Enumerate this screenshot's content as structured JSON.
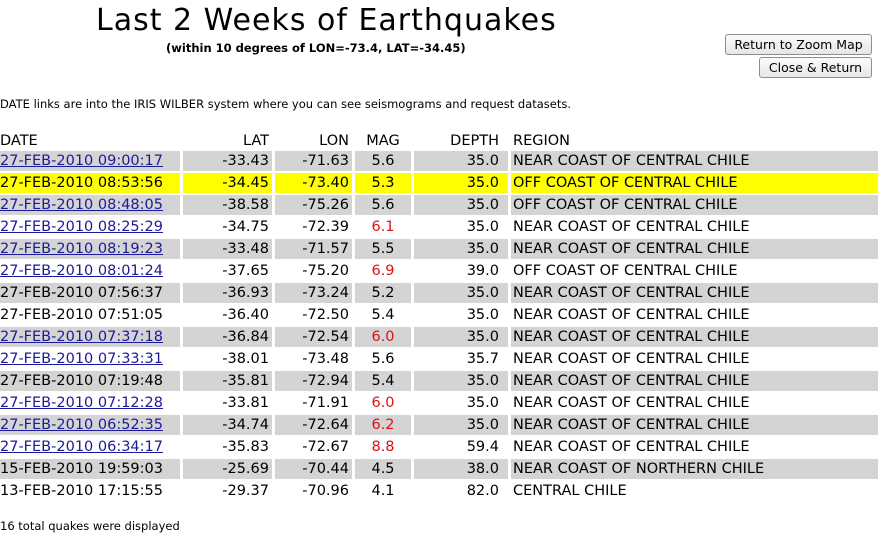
{
  "page": {
    "title": "Last 2 Weeks of Earthquakes",
    "subtitle": "(within 10 degrees of LON=-73.4, LAT=-34.45)",
    "note": "DATE links are into the IRIS WILBER system where you can see seismograms and request datasets.",
    "footer": "16 total quakes were displayed"
  },
  "buttons": {
    "zoom_map": "Return to Zoom Map",
    "close_return": "Close & Return"
  },
  "table": {
    "headers": [
      "DATE",
      "LAT",
      "LON",
      "MAG",
      "DEPTH",
      "REGION"
    ],
    "rows": [
      {
        "date": "27-FEB-2010 09:00:17",
        "lat": "-33.43",
        "lon": "-71.63",
        "mag": "5.6",
        "depth": "35.0",
        "region": "NEAR COAST OF CENTRAL CHILE",
        "link": true,
        "style": "shade",
        "big": false
      },
      {
        "date": "27-FEB-2010 08:53:56",
        "lat": "-34.45",
        "lon": "-73.40",
        "mag": "5.3",
        "depth": "35.0",
        "region": "OFF COAST OF CENTRAL CHILE",
        "link": false,
        "style": "hl",
        "big": false
      },
      {
        "date": "27-FEB-2010 08:48:05",
        "lat": "-38.58",
        "lon": "-75.26",
        "mag": "5.6",
        "depth": "35.0",
        "region": "OFF COAST OF CENTRAL CHILE",
        "link": true,
        "style": "shade",
        "big": false
      },
      {
        "date": "27-FEB-2010 08:25:29",
        "lat": "-34.75",
        "lon": "-72.39",
        "mag": "6.1",
        "depth": "35.0",
        "region": "NEAR COAST OF CENTRAL CHILE",
        "link": true,
        "style": "plain",
        "big": true
      },
      {
        "date": "27-FEB-2010 08:19:23",
        "lat": "-33.48",
        "lon": "-71.57",
        "mag": "5.5",
        "depth": "35.0",
        "region": "NEAR COAST OF CENTRAL CHILE",
        "link": true,
        "style": "shade",
        "big": false
      },
      {
        "date": "27-FEB-2010 08:01:24",
        "lat": "-37.65",
        "lon": "-75.20",
        "mag": "6.9",
        "depth": "39.0",
        "region": "OFF COAST OF CENTRAL CHILE",
        "link": true,
        "style": "plain",
        "big": true
      },
      {
        "date": "27-FEB-2010 07:56:37",
        "lat": "-36.93",
        "lon": "-73.24",
        "mag": "5.2",
        "depth": "35.0",
        "region": "NEAR COAST OF CENTRAL CHILE",
        "link": false,
        "style": "shade",
        "big": false
      },
      {
        "date": "27-FEB-2010 07:51:05",
        "lat": "-36.40",
        "lon": "-72.50",
        "mag": "5.4",
        "depth": "35.0",
        "region": "NEAR COAST OF CENTRAL CHILE",
        "link": false,
        "style": "plain",
        "big": false
      },
      {
        "date": "27-FEB-2010 07:37:18",
        "lat": "-36.84",
        "lon": "-72.54",
        "mag": "6.0",
        "depth": "35.0",
        "region": "NEAR COAST OF CENTRAL CHILE",
        "link": true,
        "style": "shade",
        "big": true
      },
      {
        "date": "27-FEB-2010 07:33:31",
        "lat": "-38.01",
        "lon": "-73.48",
        "mag": "5.6",
        "depth": "35.7",
        "region": "NEAR COAST OF CENTRAL CHILE",
        "link": true,
        "style": "plain",
        "big": false
      },
      {
        "date": "27-FEB-2010 07:19:48",
        "lat": "-35.81",
        "lon": "-72.94",
        "mag": "5.4",
        "depth": "35.0",
        "region": "NEAR COAST OF CENTRAL CHILE",
        "link": false,
        "style": "shade",
        "big": false
      },
      {
        "date": "27-FEB-2010 07:12:28",
        "lat": "-33.81",
        "lon": "-71.91",
        "mag": "6.0",
        "depth": "35.0",
        "region": "NEAR COAST OF CENTRAL CHILE",
        "link": true,
        "style": "plain",
        "big": true
      },
      {
        "date": "27-FEB-2010 06:52:35",
        "lat": "-34.74",
        "lon": "-72.64",
        "mag": "6.2",
        "depth": "35.0",
        "region": "NEAR COAST OF CENTRAL CHILE",
        "link": true,
        "style": "shade",
        "big": true
      },
      {
        "date": "27-FEB-2010 06:34:17",
        "lat": "-35.83",
        "lon": "-72.67",
        "mag": "8.8",
        "depth": "59.4",
        "region": "NEAR COAST OF CENTRAL CHILE",
        "link": true,
        "style": "plain",
        "big": true
      },
      {
        "date": "15-FEB-2010 19:59:03",
        "lat": "-25.69",
        "lon": "-70.44",
        "mag": "4.5",
        "depth": "38.0",
        "region": "NEAR COAST OF NORTHERN CHILE",
        "link": false,
        "style": "shade",
        "big": false
      },
      {
        "date": "13-FEB-2010 17:15:55",
        "lat": "-29.37",
        "lon": "-70.96",
        "mag": "4.1",
        "depth": "82.0",
        "region": "CENTRAL CHILE",
        "link": false,
        "style": "plain",
        "big": false
      }
    ]
  },
  "colors": {
    "link": "#1a1a9a",
    "highlight": "#ffff00",
    "shade": "#d4d4d4",
    "big_magnitude": "#e01010"
  }
}
